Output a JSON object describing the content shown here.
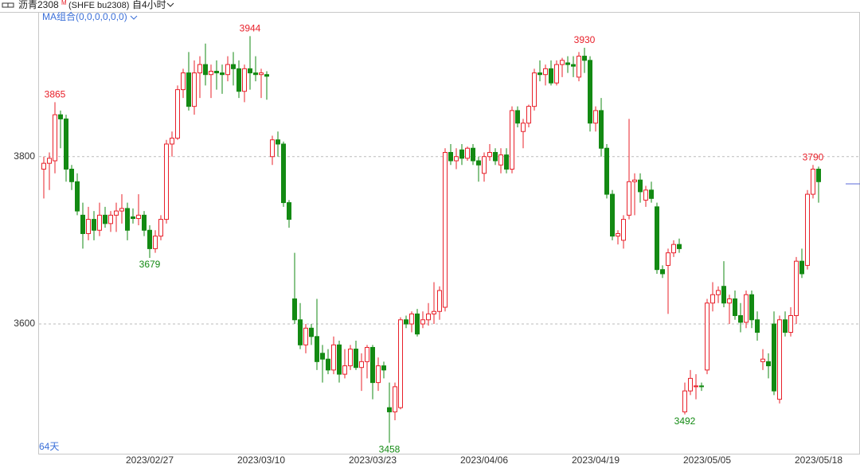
{
  "header": {
    "symbol": "沥青2308",
    "symbol_mark": "M",
    "code": "(SHFE bu2308)",
    "period": "自4小时",
    "indicator": "MA组合(0,0,0,0,0,0)",
    "span": "64天"
  },
  "chart_data": {
    "type": "candlestick",
    "up_color": "#e8202a",
    "down_color": "#138a13",
    "grid": true,
    "ylim": [
      3445,
      3970
    ],
    "yticks": [
      3600,
      3800
    ],
    "categories": [
      null,
      null,
      null,
      null,
      null,
      null,
      null,
      null,
      null,
      null,
      null,
      null,
      null,
      null,
      null,
      null,
      null,
      null,
      null,
      "2023/02/27",
      null,
      null,
      null,
      null,
      null,
      null,
      null,
      null,
      null,
      null,
      null,
      null,
      null,
      null,
      null,
      null,
      null,
      null,
      null,
      "2023/03/10",
      null,
      null,
      null,
      null,
      null,
      null,
      null,
      null,
      null,
      null,
      null,
      null,
      null,
      null,
      null,
      null,
      null,
      null,
      null,
      "2023/03/23",
      null,
      null,
      null,
      null,
      null,
      null,
      null,
      null,
      null,
      null,
      null,
      null,
      null,
      null,
      null,
      null,
      null,
      null,
      null,
      "2023/04/06",
      null,
      null,
      null,
      null,
      null,
      null,
      null,
      null,
      null,
      null,
      null,
      null,
      null,
      null,
      null,
      null,
      null,
      null,
      null,
      "2023/04/19",
      null,
      null,
      null,
      null,
      null,
      null,
      null,
      null,
      null,
      null,
      null,
      null,
      null,
      null,
      null,
      null,
      null,
      null,
      null,
      "2023/05/05",
      null,
      null,
      null,
      null,
      null,
      null,
      null,
      null,
      null,
      null,
      null,
      null,
      null,
      null,
      null,
      null,
      null,
      null,
      null,
      "2023/05/18"
    ],
    "open": [
      3785,
      3792,
      3795,
      3850,
      3845,
      3785,
      3770,
      3730,
      3708,
      3725,
      3712,
      3730,
      3720,
      3730,
      3735,
      3738,
      3728,
      3726,
      3730,
      3712,
      3690,
      3705,
      3725,
      3815,
      3822,
      3880,
      3900,
      3860,
      3900,
      3910,
      3898,
      3902,
      3900,
      3898,
      3910,
      3905,
      3878,
      3905,
      3900,
      3898,
      3898,
      3800,
      3820,
      3815,
      3745,
      3630,
      3605,
      3575,
      3595,
      3585,
      3565,
      3558,
      3545,
      3575,
      3540,
      3550,
      3570,
      3548,
      3555,
      3572,
      3530,
      3550,
      3500,
      3495,
      3500,
      3605,
      3600,
      3612,
      3600,
      3605,
      3612,
      3615,
      3620,
      3805,
      3795,
      3808,
      3798,
      3810,
      3795,
      3780,
      3800,
      3805,
      3790,
      3802,
      3785,
      3855,
      3830,
      3840,
      3860,
      3900,
      3898,
      3905,
      3888,
      3910,
      3912,
      3910,
      3895,
      3920,
      3915,
      3840,
      3855,
      3810,
      3755,
      3705,
      3700,
      3730,
      3770,
      3772,
      3748,
      3760,
      3740,
      3665,
      3670,
      3685,
      3695,
      3495,
      3520,
      3525,
      3526,
      3545,
      3625,
      3635,
      3645,
      3625,
      3630,
      3610,
      3602,
      3635,
      3605,
      3555,
      3555,
      3600,
      3510,
      3605,
      3590,
      3610,
      3675,
      3670,
      3755,
      3785
    ],
    "high": [
      3800,
      3805,
      3865,
      3855,
      3850,
      3790,
      3780,
      3745,
      3740,
      3735,
      3745,
      3740,
      3735,
      3745,
      3755,
      3745,
      3738,
      3755,
      3735,
      3718,
      3712,
      3730,
      3820,
      3830,
      3885,
      3905,
      3925,
      3915,
      3920,
      3935,
      3910,
      3915,
      3910,
      3920,
      3925,
      3915,
      3910,
      3944,
      3920,
      3905,
      3902,
      3825,
      3830,
      3818,
      3748,
      3685,
      3625,
      3600,
      3600,
      3630,
      3575,
      3570,
      3585,
      3580,
      3570,
      3575,
      3580,
      3565,
      3575,
      3575,
      3560,
      3555,
      3530,
      3530,
      3608,
      3610,
      3615,
      3618,
      3615,
      3625,
      3650,
      3645,
      3810,
      3815,
      3810,
      3815,
      3812,
      3815,
      3800,
      3805,
      3815,
      3810,
      3810,
      3810,
      3860,
      3860,
      3845,
      3862,
      3905,
      3915,
      3910,
      3915,
      3915,
      3918,
      3920,
      3920,
      3925,
      3930,
      3920,
      3860,
      3870,
      3815,
      3760,
      3712,
      3730,
      3845,
      3780,
      3780,
      3765,
      3770,
      3745,
      3670,
      3690,
      3700,
      3702,
      3530,
      3545,
      3540,
      3530,
      3630,
      3650,
      3645,
      3675,
      3635,
      3640,
      3625,
      3640,
      3640,
      3615,
      3570,
      3565,
      3615,
      3610,
      3615,
      3620,
      3680,
      3690,
      3760,
      3790,
      3788
    ],
    "low": [
      3750,
      3760,
      3780,
      3810,
      3770,
      3760,
      3730,
      3690,
      3700,
      3700,
      3705,
      3715,
      3710,
      3710,
      3720,
      3700,
      3720,
      3718,
      3705,
      3679,
      3685,
      3700,
      3720,
      3800,
      3820,
      3870,
      3855,
      3850,
      3870,
      3885,
      3870,
      3880,
      3875,
      3890,
      3885,
      3870,
      3865,
      3880,
      3890,
      3870,
      3868,
      3790,
      3800,
      3740,
      3715,
      3600,
      3570,
      3565,
      3575,
      3545,
      3530,
      3540,
      3540,
      3530,
      3535,
      3545,
      3545,
      3520,
      3535,
      3510,
      3520,
      3535,
      3458,
      3485,
      3498,
      3595,
      3590,
      3585,
      3595,
      3598,
      3600,
      3605,
      3615,
      3790,
      3785,
      3790,
      3795,
      3790,
      3770,
      3770,
      3795,
      3790,
      3780,
      3780,
      3780,
      3835,
      3810,
      3835,
      3855,
      3890,
      3885,
      3885,
      3885,
      3895,
      3900,
      3895,
      3890,
      3900,
      3830,
      3830,
      3800,
      3750,
      3700,
      3695,
      3690,
      3725,
      3730,
      3745,
      3740,
      3745,
      3660,
      3655,
      3612,
      3680,
      3685,
      3492,
      3515,
      3510,
      3520,
      3540,
      3615,
      3625,
      3620,
      3600,
      3605,
      3590,
      3595,
      3595,
      3580,
      3545,
      3535,
      3515,
      3505,
      3585,
      3585,
      3600,
      3655,
      3665,
      3750,
      3745
    ],
    "close": [
      3792,
      3798,
      3850,
      3845,
      3785,
      3770,
      3735,
      3708,
      3725,
      3712,
      3730,
      3720,
      3730,
      3735,
      3738,
      3712,
      3726,
      3730,
      3712,
      3690,
      3705,
      3725,
      3815,
      3822,
      3880,
      3900,
      3860,
      3900,
      3910,
      3898,
      3902,
      3900,
      3898,
      3910,
      3905,
      3878,
      3905,
      3900,
      3898,
      3900,
      3896,
      3820,
      3815,
      3745,
      3725,
      3605,
      3575,
      3595,
      3585,
      3555,
      3558,
      3545,
      3575,
      3540,
      3550,
      3570,
      3548,
      3555,
      3572,
      3530,
      3550,
      3545,
      3495,
      3525,
      3605,
      3600,
      3612,
      3588,
      3605,
      3612,
      3615,
      3640,
      3805,
      3795,
      3800,
      3798,
      3810,
      3795,
      3790,
      3800,
      3805,
      3795,
      3802,
      3785,
      3855,
      3840,
      3840,
      3860,
      3900,
      3898,
      3905,
      3888,
      3910,
      3915,
      3910,
      3908,
      3920,
      3915,
      3840,
      3855,
      3810,
      3755,
      3705,
      3708,
      3725,
      3770,
      3772,
      3758,
      3760,
      3750,
      3665,
      3660,
      3685,
      3695,
      3690,
      3520,
      3535,
      3526,
      3525,
      3625,
      3635,
      3640,
      3625,
      3630,
      3610,
      3602,
      3635,
      3605,
      3590,
      3558,
      3550,
      3520,
      3605,
      3590,
      3610,
      3675,
      3660,
      3755,
      3785,
      3770
    ],
    "max_labels": [
      2,
      37,
      97,
      138
    ],
    "min_labels": [
      19,
      62,
      115
    ]
  }
}
